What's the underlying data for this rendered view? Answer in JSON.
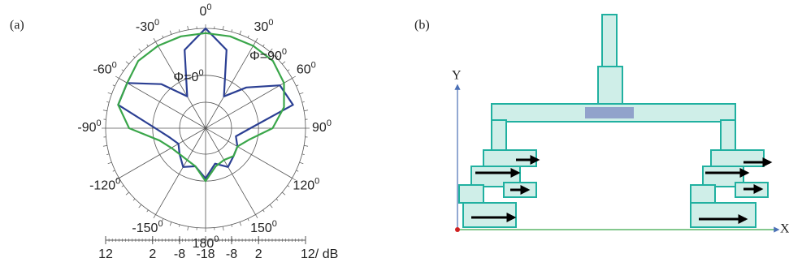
{
  "chart_data": {
    "type": "polar",
    "panel_label": "(a)",
    "angles": [
      0,
      15,
      30,
      45,
      60,
      75,
      90,
      105,
      120,
      135,
      150,
      165,
      180,
      195,
      210,
      225,
      240,
      255,
      270,
      285,
      300,
      315,
      330,
      345
    ],
    "series": [
      {
        "name": "Φ=0",
        "color": "#2b3f93",
        "values": [
          12,
          8,
          -4,
          3,
          9,
          10,
          -1,
          -6,
          -4,
          -3,
          -1,
          -4,
          1,
          -3,
          -1,
          -4,
          -6,
          -4,
          1,
          10,
          10,
          4,
          -4,
          8
        ]
      },
      {
        "name": "Φ=90",
        "color": "#3aa64a",
        "values": [
          11,
          11,
          11,
          11,
          10,
          8,
          5,
          -1,
          -4,
          -3,
          -4,
          -3,
          2,
          -3,
          -4,
          -4,
          -3,
          0,
          7,
          10,
          10,
          11,
          11,
          11
        ]
      }
    ],
    "degree_mark": "0",
    "angle_ticks": [
      0,
      30,
      60,
      90,
      120,
      150,
      180,
      -150,
      -120,
      -90,
      -60,
      -30
    ],
    "rlim": [
      -18,
      12
    ],
    "rticks": [
      -18,
      -8,
      2,
      12
    ],
    "r_unit": "/ dB"
  },
  "diagram": {
    "panel_label": "(b)",
    "y_axis": "Y",
    "x_axis": "X"
  }
}
